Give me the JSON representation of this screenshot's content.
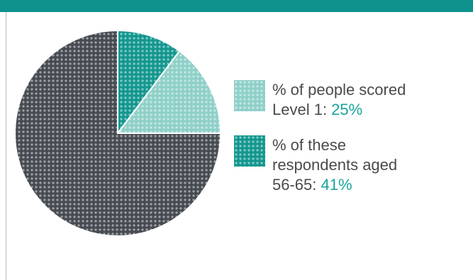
{
  "colors": {
    "header": "#0e918c",
    "dark": "#474c53",
    "light": "#8fd0c8",
    "teal": "#14978f",
    "text": "#4a4a4a",
    "accent": "#17a59a"
  },
  "chart_data": {
    "type": "pie",
    "slices": [
      {
        "name": "% of these respondents aged 56-65",
        "value": 10.25,
        "color": "#14978f"
      },
      {
        "name": "% of people scored Level 1",
        "value": 14.75,
        "color": "#8fd0c8"
      },
      {
        "name": "other",
        "value": 75,
        "color": "#474c53"
      }
    ]
  },
  "legend": [
    {
      "text": "% of people scored Level 1: ",
      "value": "25%",
      "color": "#8fd0c8",
      "swatch_icon": "light-teal-swatch"
    },
    {
      "text": "% of these respondents aged 56-65: ",
      "value": "41%",
      "color": "#14978f",
      "swatch_icon": "teal-swatch"
    }
  ]
}
